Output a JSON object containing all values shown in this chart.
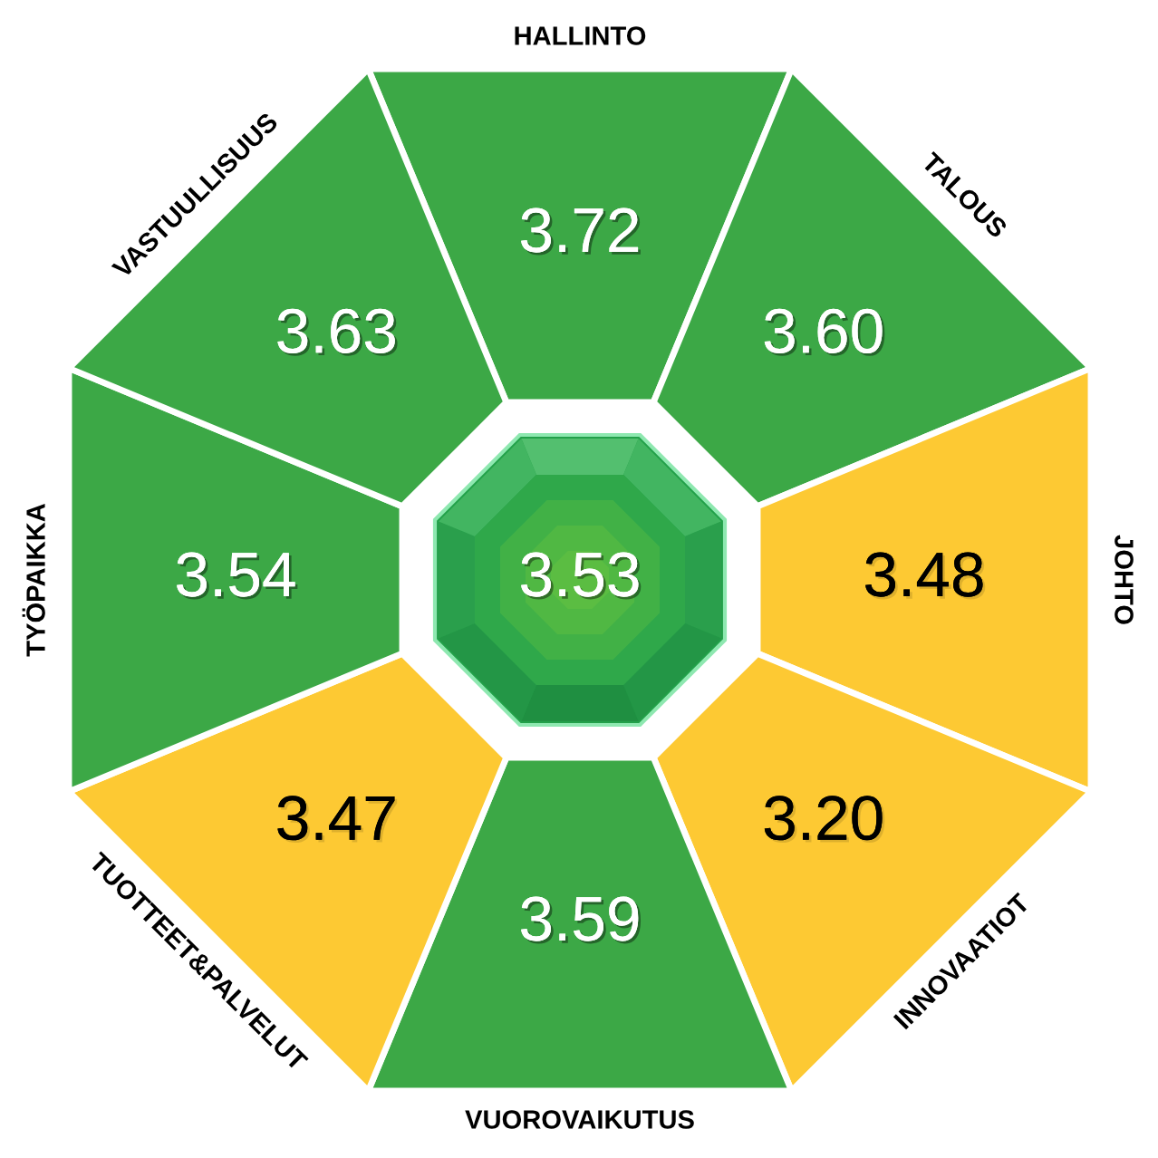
{
  "chart_data": {
    "type": "other",
    "categories": [
      "HALLINTO",
      "TALOUS",
      "JOHTO",
      "INNOVAATIOT",
      "VUOROVAIKUTUS",
      "TUOTTEET&PALVELUT",
      "TYÖPAIKKA",
      "VASTUULLISUUS"
    ],
    "values": [
      3.72,
      3.6,
      3.48,
      3.2,
      3.59,
      3.47,
      3.54,
      3.63
    ],
    "value_labels": [
      "3.72",
      "3.60",
      "3.48",
      "3.20",
      "3.59",
      "3.47",
      "3.54",
      "3.63"
    ],
    "colors": [
      "#3ca846",
      "#3ca846",
      "#fdc933",
      "#fdc933",
      "#3ca846",
      "#fdc933",
      "#3ca846",
      "#3ca846"
    ],
    "annotations": [
      "3.53"
    ]
  }
}
